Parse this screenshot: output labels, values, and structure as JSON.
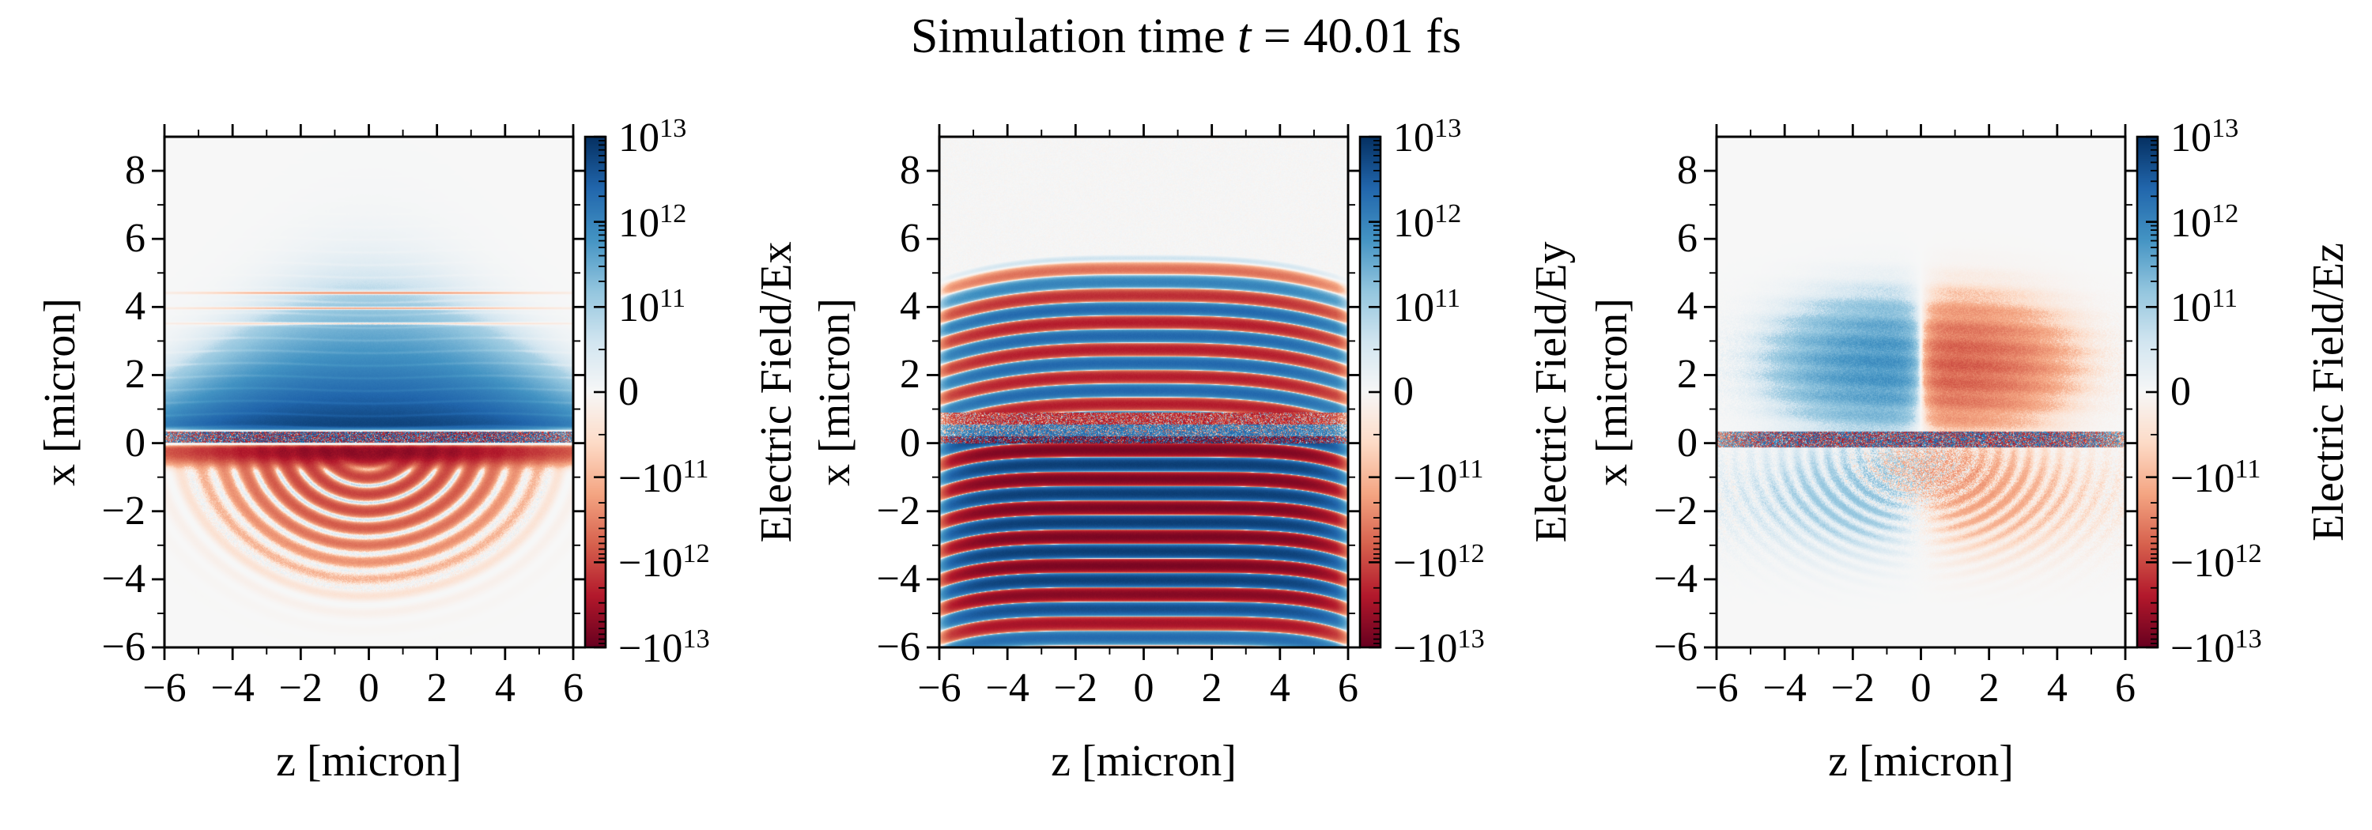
{
  "figure": {
    "title": {
      "prefix": "Simulation time ",
      "var": "t",
      "suffix": " = 40.01 fs"
    },
    "background": "#ffffff",
    "plot_background": "#f7f7f7",
    "text_color": "#000000"
  },
  "colormap": {
    "name": "RdBu",
    "stops_top_to_bottom": [
      "#053061",
      "#2166ac",
      "#4393c3",
      "#92c5de",
      "#d1e5f0",
      "#f7f7f7",
      "#fddbc7",
      "#f4a582",
      "#d6604d",
      "#b2182b",
      "#67001f"
    ]
  },
  "chart_data": [
    {
      "type": "heatmap",
      "field": "Ex",
      "xlabel": "z [micron]",
      "ylabel": "x [micron]",
      "colorbar_label": "Electric Field/Ex",
      "x_range": [
        -6,
        6
      ],
      "y_range": [
        -6,
        9
      ],
      "x_major_ticks": [
        -6,
        -4,
        -2,
        0,
        2,
        4,
        6
      ],
      "x_minor_ticks": [
        -5,
        -3,
        -1,
        1,
        3,
        5
      ],
      "y_major_ticks": [
        8,
        6,
        4,
        2,
        0,
        -2,
        -4,
        -6
      ],
      "y_minor_ticks": [
        7,
        5,
        3,
        1,
        -1,
        -3,
        -5
      ],
      "x_tick_labels": [
        "−6",
        "−4",
        "−2",
        "0",
        "2",
        "4",
        "6"
      ],
      "y_tick_labels": [
        "8",
        "6",
        "4",
        "2",
        "0",
        "−2",
        "−4",
        "−6"
      ],
      "colorbar": {
        "scale": "symlog",
        "linthresh": 100000000000.0,
        "vmin": -10000000000000.0,
        "vmax": 10000000000000.0,
        "tick_values": [
          10000000000000.0,
          1000000000000.0,
          100000000000.0,
          0,
          -100000000000.0,
          -1000000000000.0,
          -10000000000000.0
        ],
        "tick_labels": [
          "10^13",
          "10^12",
          "10^11",
          "0",
          "−10^11",
          "−10^12",
          "−10^13"
        ]
      },
      "features": "Strong positive (dark blue) half-space field above the plasma surface, peaking ~6e12 just above x=0 and decaying by x~5 and toward |z|~6; speckle noise layer for 0<x<0.33; thin intense negative (dark red) sheet at x~-0.3 (~-4.5e12); concentric negative red arcs (~-1e12) with thin positive gaps below the surface down to x~-4.5.",
      "model": {
        "seed": 11,
        "upper": {
          "amp": 5800000000000.0,
          "xStart": 0.4,
          "decPerMicron": 0.475,
          "zSigma": 4.9,
          "zPow": 2.6,
          "striaPeriod": 0.37,
          "striaDepth": 0.32,
          "pinkLineX": 3.85,
          "pinkAmp": 300000000000.0
        },
        "noise": {
          "xMin": 0.02,
          "xMax": 0.33,
          "amp": 7000000000000.0,
          "zSigma": 5.8
        },
        "surface": {
          "amp": 4500000000000.0,
          "x0": -0.26,
          "sigma": 0.27,
          "zSigma": 4.4
        },
        "rings": {
          "amp": 950000000000.0,
          "az": 5.35,
          "ax": 4.25,
          "period": 0.118,
          "envCenter": 0.3,
          "envWidth": 0.42
        }
      }
    },
    {
      "type": "heatmap",
      "field": "Ey",
      "xlabel": "z [micron]",
      "ylabel": "x [micron]",
      "colorbar_label": "Electric Field/Ey",
      "x_range": [
        -6,
        6
      ],
      "y_range": [
        -6,
        9
      ],
      "x_major_ticks": [
        -6,
        -4,
        -2,
        0,
        2,
        4,
        6
      ],
      "x_minor_ticks": [
        -5,
        -3,
        -1,
        1,
        3,
        5
      ],
      "y_major_ticks": [
        8,
        6,
        4,
        2,
        0,
        -2,
        -4,
        -6
      ],
      "y_minor_ticks": [
        7,
        5,
        3,
        1,
        -1,
        -3,
        -5
      ],
      "x_tick_labels": [
        "−6",
        "−4",
        "−2",
        "0",
        "2",
        "4",
        "6"
      ],
      "y_tick_labels": [
        "8",
        "6",
        "4",
        "2",
        "0",
        "−2",
        "−4",
        "−6"
      ],
      "colorbar": {
        "scale": "symlog",
        "linthresh": 100000000000.0,
        "vmin": -10000000000000.0,
        "vmax": 10000000000000.0,
        "tick_values": [
          10000000000000.0,
          1000000000000.0,
          100000000000.0,
          0,
          -100000000000.0,
          -1000000000000.0,
          -10000000000000.0
        ],
        "tick_labels": [
          "10^13",
          "10^12",
          "10^11",
          "0",
          "−10^11",
          "−10^12",
          "−10^13"
        ]
      },
      "features": "Standing-wave horizontal stripes alternating red/blue, wavelength ~0.8 micron; moderate amplitude (~2e12) stripes from x~0.9 up to x~5.5 fading at top and drooping at |z|>5; speckle band 0<x<0.9; saturated stripes (~7e12, near-black red/blue) from x~0 down to x~-3.6, decaying to the bottom edge; lateral fade near |z|~5.7.",
      "model": {
        "seed": 22,
        "lambdaUp": 0.8,
        "lambdaDn": 0.85,
        "upper": {
          "amp": 2300000000000.0,
          "top": 5.55,
          "ramp": 1.6,
          "phase": 5.15,
          "droop": 0.6,
          "zSigma": 5.9
        },
        "noise": {
          "bands": [
            [
              0.55,
              0.9,
              -0.35,
              1800000000000.0
            ],
            [
              0.2,
              0.55,
              0.3,
              1800000000000.0
            ],
            [
              0.0,
              0.2,
              -0.05,
              8000000000000.0
            ]
          ],
          "zSigma": 5.9
        },
        "lower": {
          "amp": 7000000000000.0,
          "knee": -3.55,
          "tail": 2.0,
          "phase": -0.2,
          "droop": 0.45,
          "zSigma": 5.75,
          "bottom": -6.4
        }
      }
    },
    {
      "type": "heatmap",
      "field": "Ez",
      "xlabel": "z [micron]",
      "ylabel": "x [micron]",
      "colorbar_label": "Electric Field/Ez",
      "x_range": [
        -6,
        6
      ],
      "y_range": [
        -6,
        9
      ],
      "x_major_ticks": [
        -6,
        -4,
        -2,
        0,
        2,
        4,
        6
      ],
      "x_minor_ticks": [
        -5,
        -3,
        -1,
        1,
        3,
        5
      ],
      "y_major_ticks": [
        8,
        6,
        4,
        2,
        0,
        -2,
        -4,
        -6
      ],
      "y_minor_ticks": [
        7,
        5,
        3,
        1,
        -1,
        -3,
        -5
      ],
      "x_tick_labels": [
        "−6",
        "−4",
        "−2",
        "0",
        "2",
        "4",
        "6"
      ],
      "y_tick_labels": [
        "8",
        "6",
        "4",
        "2",
        "0",
        "−2",
        "−4",
        "−6"
      ],
      "colorbar": {
        "scale": "symlog",
        "linthresh": 100000000000.0,
        "vmin": -10000000000000.0,
        "vmax": 10000000000000.0,
        "tick_values": [
          10000000000000.0,
          1000000000000.0,
          100000000000.0,
          0,
          -100000000000.0,
          -1000000000000.0,
          -10000000000000.0
        ],
        "tick_labels": [
          "10^13",
          "10^12",
          "10^11",
          "0",
          "−10^11",
          "−10^12",
          "−10^13"
        ]
      },
      "features": "Antisymmetric dipole above surface: speckled positive (blue) lobe for z<0 and negative (red) lobe for z>0, centered near |z|~2.4, x~2.3, peak ~|6e11|, sharp boundary at z=0; speckle band -0.1<x<0.35; very faint mirrored rippled lobes (~|2e11|) below the surface down to x~-4.",
      "model": {
        "seed": 33,
        "noise": {
          "xMin": -0.12,
          "xMax": 0.35,
          "amp": 5000000000000.0,
          "zSigma": 5.5
        },
        "lobes": {
          "amp": 650000000000.0,
          "xc": 2.3,
          "sx": 1.45,
          "zSharp": 0.55,
          "zSigma": 3.4,
          "zPow": 2.6,
          "striaPeriod": 0.55,
          "speckle": 0.7
        },
        "lower": {
          "amp": 230000000000.0,
          "xc": -1.5,
          "sx": 1.5,
          "zSharp": 1.3,
          "zSigma": 4.2,
          "zPow": 2.2,
          "ringPeriod": 0.095,
          "fadeX": -4.2
        }
      }
    }
  ]
}
